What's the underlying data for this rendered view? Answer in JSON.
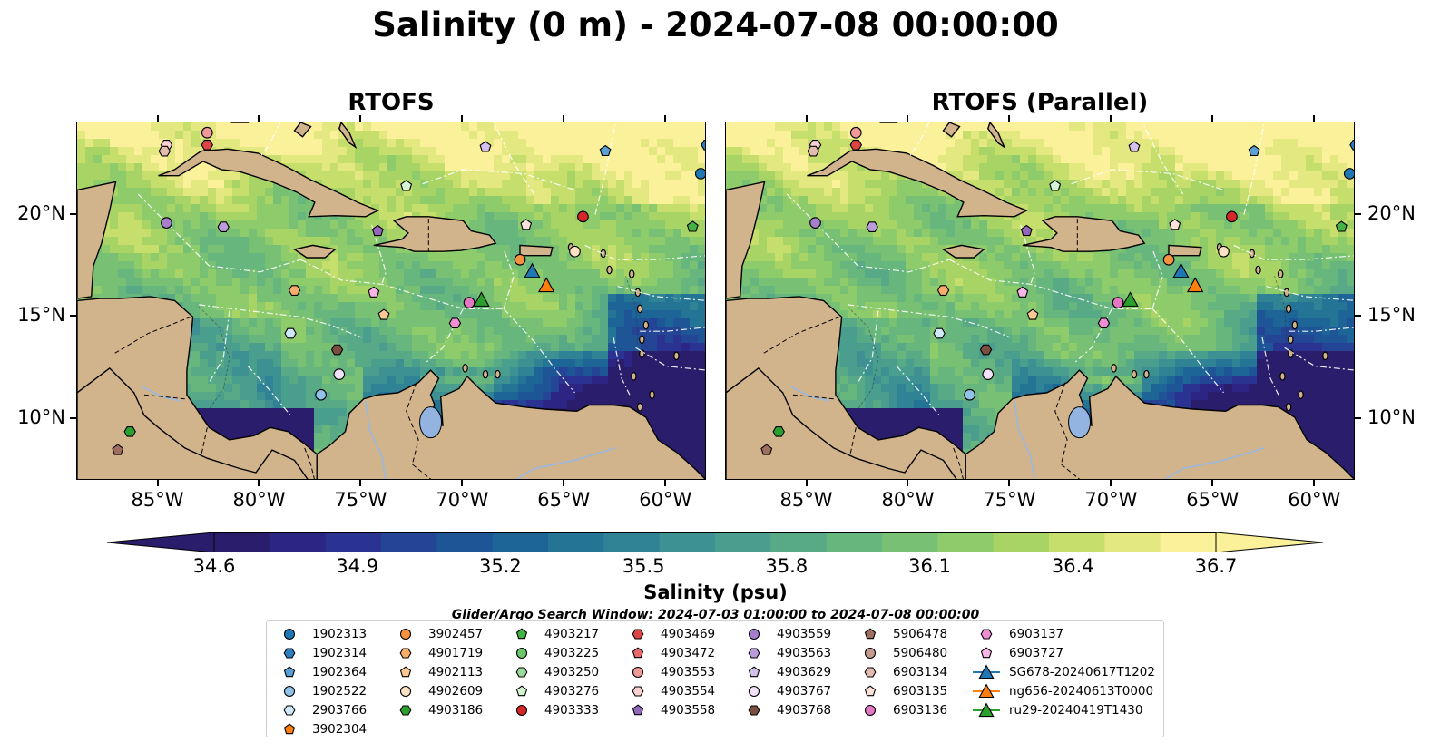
{
  "figure": {
    "suptitle": "Salinity (0 m) - 2024-07-08 00:00:00",
    "panels": [
      {
        "title": "RTOFS"
      },
      {
        "title": "RTOFS (Parallel)"
      }
    ],
    "lon_ticks": [
      "85°W",
      "80°W",
      "75°W",
      "70°W",
      "65°W",
      "60°W"
    ],
    "lat_ticks": [
      "20°N",
      "15°N",
      "10°N"
    ],
    "colorbar": {
      "label": "Salinity (psu)",
      "ticks": [
        "34.6",
        "34.9",
        "35.2",
        "35.5",
        "35.8",
        "36.1",
        "36.4",
        "36.7"
      ],
      "colormap": "haline",
      "extend": "both",
      "colors": [
        "#2a1d6b",
        "#2d2583",
        "#2a3391",
        "#244496",
        "#1d5597",
        "#1c6596",
        "#237495",
        "#2f8394",
        "#3d9192",
        "#4a9e8d",
        "#58aa86",
        "#66b67e",
        "#78c174",
        "#8ecb6b",
        "#a8d465",
        "#c6de6b",
        "#e3e880",
        "#fbf19a"
      ]
    },
    "legend": {
      "title": "Glider/Argo Search Window: 2024-07-03 01:00:00 to 2024-07-08 00:00:00",
      "columns": [
        [
          {
            "label": "1902313",
            "marker": "circle",
            "color": "#1f77b4"
          },
          {
            "label": "1902314",
            "marker": "hexagon",
            "color": "#2b7fc0"
          },
          {
            "label": "1902364",
            "marker": "pentagon",
            "color": "#5a9fd6"
          },
          {
            "label": "1902522",
            "marker": "circle",
            "color": "#8fc3ea"
          },
          {
            "label": "2903766",
            "marker": "hexagon",
            "color": "#cfe8fa"
          },
          {
            "label": "3902304",
            "marker": "pentagon",
            "color": "#ff7f0e"
          }
        ],
        [
          {
            "label": "3902457",
            "marker": "circle",
            "color": "#f5913f"
          },
          {
            "label": "4901719",
            "marker": "hexagon",
            "color": "#fbae6b"
          },
          {
            "label": "4902113",
            "marker": "pentagon",
            "color": "#fdc893"
          },
          {
            "label": "4902609",
            "marker": "circle",
            "color": "#fde1c4"
          },
          {
            "label": "4903186",
            "marker": "hexagon",
            "color": "#2ca02c"
          }
        ],
        [
          {
            "label": "4903217",
            "marker": "pentagon",
            "color": "#44b244"
          },
          {
            "label": "4903225",
            "marker": "circle",
            "color": "#6cc66c"
          },
          {
            "label": "4903250",
            "marker": "hexagon",
            "color": "#9bdb9b"
          },
          {
            "label": "4903276",
            "marker": "pentagon",
            "color": "#d4f4d4"
          },
          {
            "label": "4903333",
            "marker": "circle",
            "color": "#d62728"
          }
        ],
        [
          {
            "label": "4903469",
            "marker": "hexagon",
            "color": "#dd4444"
          },
          {
            "label": "4903472",
            "marker": "pentagon",
            "color": "#e86a6a"
          },
          {
            "label": "4903553",
            "marker": "circle",
            "color": "#f09a9a"
          },
          {
            "label": "4903554",
            "marker": "hexagon",
            "color": "#fbd0d0"
          },
          {
            "label": "4903558",
            "marker": "pentagon",
            "color": "#9467bd"
          }
        ],
        [
          {
            "label": "4903559",
            "marker": "circle",
            "color": "#a57fcb"
          },
          {
            "label": "4903563",
            "marker": "hexagon",
            "color": "#bb9cdb"
          },
          {
            "label": "4903629",
            "marker": "pentagon",
            "color": "#d5bfec"
          },
          {
            "label": "4903767",
            "marker": "circle",
            "color": "#f0e2fb"
          },
          {
            "label": "4903768",
            "marker": "hexagon",
            "color": "#7a4f3f"
          }
        ],
        [
          {
            "label": "5906478",
            "marker": "pentagon",
            "color": "#9e6f60"
          },
          {
            "label": "5906480",
            "marker": "circle",
            "color": "#c69a8c"
          },
          {
            "label": "6903134",
            "marker": "hexagon",
            "color": "#e3bcb1"
          },
          {
            "label": "6903135",
            "marker": "pentagon",
            "color": "#fde1da"
          },
          {
            "label": "6903136",
            "marker": "circle",
            "color": "#e377c2"
          }
        ],
        [
          {
            "label": "6903137",
            "marker": "hexagon",
            "color": "#ee8fd3"
          },
          {
            "label": "6903727",
            "marker": "pentagon",
            "color": "#f8b5e6"
          },
          {
            "label": "SG678-20240617T1202",
            "marker": "triangle-line",
            "color": "#1f77b4"
          },
          {
            "label": "ng656-20240613T0000",
            "marker": "triangle-line",
            "color": "#ff7f0e"
          },
          {
            "label": "ru29-20240419T1430",
            "marker": "triangle-line",
            "color": "#2ca02c"
          }
        ]
      ]
    }
  },
  "map_data": {
    "extent": {
      "lon_min": -89,
      "lon_max": -58,
      "lat_min": 7,
      "lat_max": 24.5
    },
    "features": [
      "land-tan",
      "ocean-salinity-filled",
      "bathymetry-contours",
      "eez-boundaries-white-dashed",
      "country-borders-black-dashed",
      "rivers-lightblue"
    ],
    "land_color": "#d2b48c",
    "lake_color": "#93b3e0",
    "floats": [
      {
        "id": "1902313",
        "lon": -58.3,
        "lat": 22.0
      },
      {
        "id": "1902314",
        "lon": -58.0,
        "lat": 23.4
      },
      {
        "id": "1902364",
        "lon": -63.0,
        "lat": 23.1
      },
      {
        "id": "1902522",
        "lon": -77.0,
        "lat": 11.2
      },
      {
        "id": "2903766",
        "lon": -78.5,
        "lat": 14.2
      },
      {
        "id": "3902457",
        "lon": -67.2,
        "lat": 17.8
      },
      {
        "id": "4901719",
        "lon": -78.3,
        "lat": 16.3
      },
      {
        "id": "4902113",
        "lon": -73.9,
        "lat": 15.1
      },
      {
        "id": "4902609",
        "lon": -64.5,
        "lat": 18.2
      },
      {
        "id": "4903186",
        "lon": -86.4,
        "lat": 9.4
      },
      {
        "id": "4903217",
        "lon": -58.7,
        "lat": 19.4
      },
      {
        "id": "4903276",
        "lon": -72.8,
        "lat": 21.4
      },
      {
        "id": "4903333",
        "lon": -64.1,
        "lat": 19.9
      },
      {
        "id": "4903469",
        "lon": -82.6,
        "lat": 23.4
      },
      {
        "id": "4903553",
        "lon": -82.6,
        "lat": 24.0
      },
      {
        "id": "4903554",
        "lon": -84.6,
        "lat": 23.4
      },
      {
        "id": "4903558",
        "lon": -74.2,
        "lat": 19.2
      },
      {
        "id": "4903559",
        "lon": -84.6,
        "lat": 19.6
      },
      {
        "id": "4903563",
        "lon": -81.8,
        "lat": 19.4
      },
      {
        "id": "4903629",
        "lon": -68.9,
        "lat": 23.3
      },
      {
        "id": "4903767",
        "lon": -76.1,
        "lat": 12.2
      },
      {
        "id": "4903768",
        "lon": -76.2,
        "lat": 13.4
      },
      {
        "id": "5906478",
        "lon": -87.0,
        "lat": 8.5
      },
      {
        "id": "6903134",
        "lon": -84.7,
        "lat": 23.1
      },
      {
        "id": "6903135",
        "lon": -66.9,
        "lat": 19.5
      },
      {
        "id": "6903136",
        "lon": -69.7,
        "lat": 15.7
      },
      {
        "id": "6903137",
        "lon": -70.4,
        "lat": 14.7
      },
      {
        "id": "6903727",
        "lon": -74.4,
        "lat": 16.2
      }
    ],
    "gliders": [
      {
        "id": "SG678-20240617T1202",
        "lon": -66.6,
        "lat": 17.2
      },
      {
        "id": "ng656-20240613T0000",
        "lon": -65.9,
        "lat": 16.5
      },
      {
        "id": "ru29-20240419T1430",
        "lon": -69.1,
        "lat": 15.8
      }
    ]
  }
}
